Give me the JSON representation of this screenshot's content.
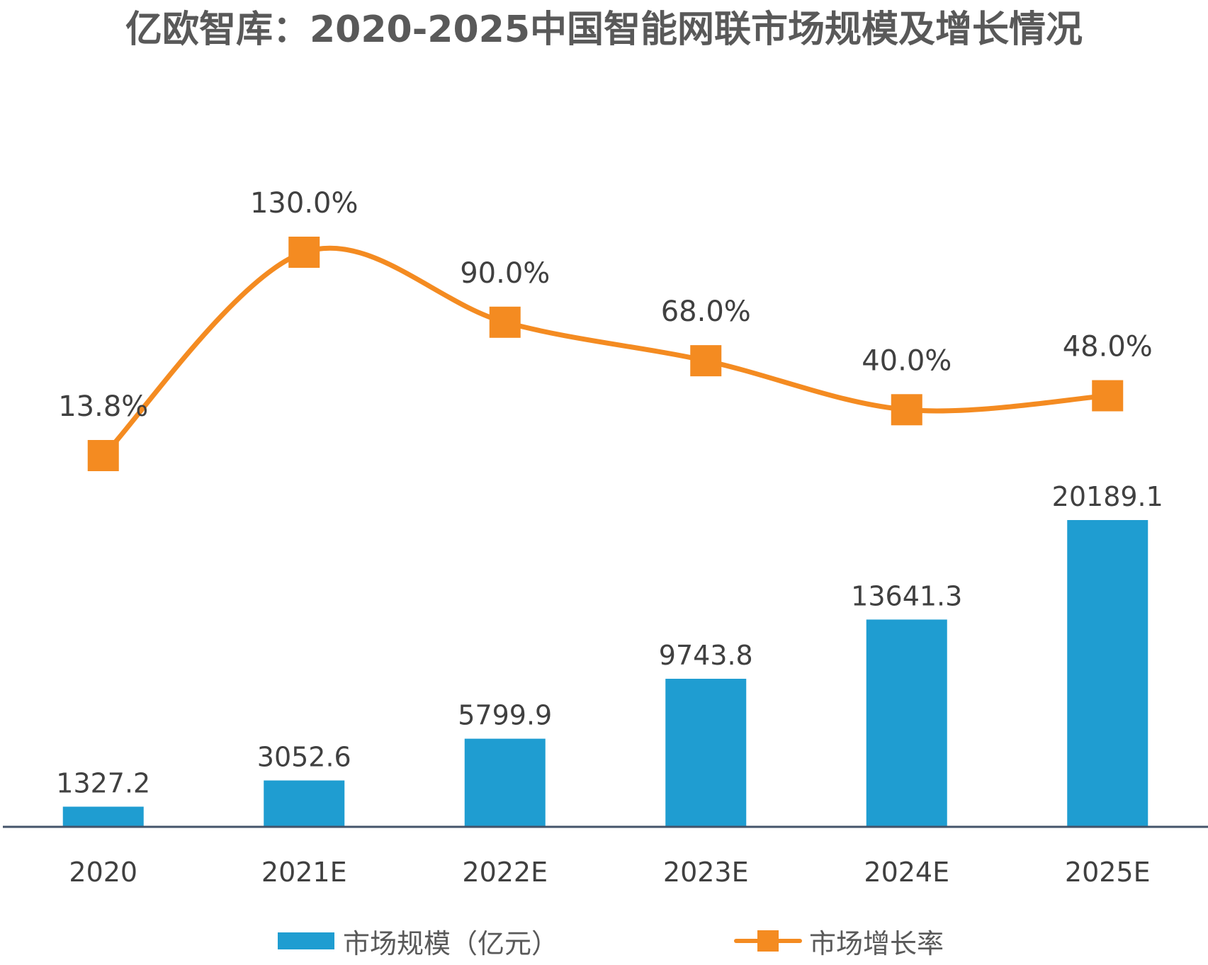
{
  "chart_data": {
    "type": "bar+line",
    "title": "亿欧智库：2020-2025中国智能网联市场规模及增长情况",
    "categories": [
      "2020",
      "2021E",
      "2022E",
      "2023E",
      "2024E",
      "2025E"
    ],
    "series": [
      {
        "name": "市场规模（亿元）",
        "type": "bar",
        "values": [
          1327.2,
          3052.6,
          5799.9,
          9743.8,
          13641.3,
          20189.1
        ],
        "labels": [
          "1327.2",
          "3052.6",
          "5799.9",
          "9743.8",
          "13641.3",
          "20189.1"
        ],
        "color": "#1f9dd1"
      },
      {
        "name": "市场增长率",
        "type": "line",
        "values": [
          13.8,
          130.0,
          90.0,
          68.0,
          40.0,
          48.0
        ],
        "labels": [
          "13.8%",
          "130.0%",
          "90.0%",
          "68.0%",
          "40.0%",
          "48.0%"
        ],
        "unit": "%",
        "color": "#f48b21",
        "smooth": true,
        "marker": "square"
      }
    ],
    "xlabel": "",
    "ylabel": "",
    "grid": false,
    "legend": "bottom"
  },
  "colors": {
    "title": "#595959",
    "text": "#404040",
    "axis": "#44546a"
  }
}
